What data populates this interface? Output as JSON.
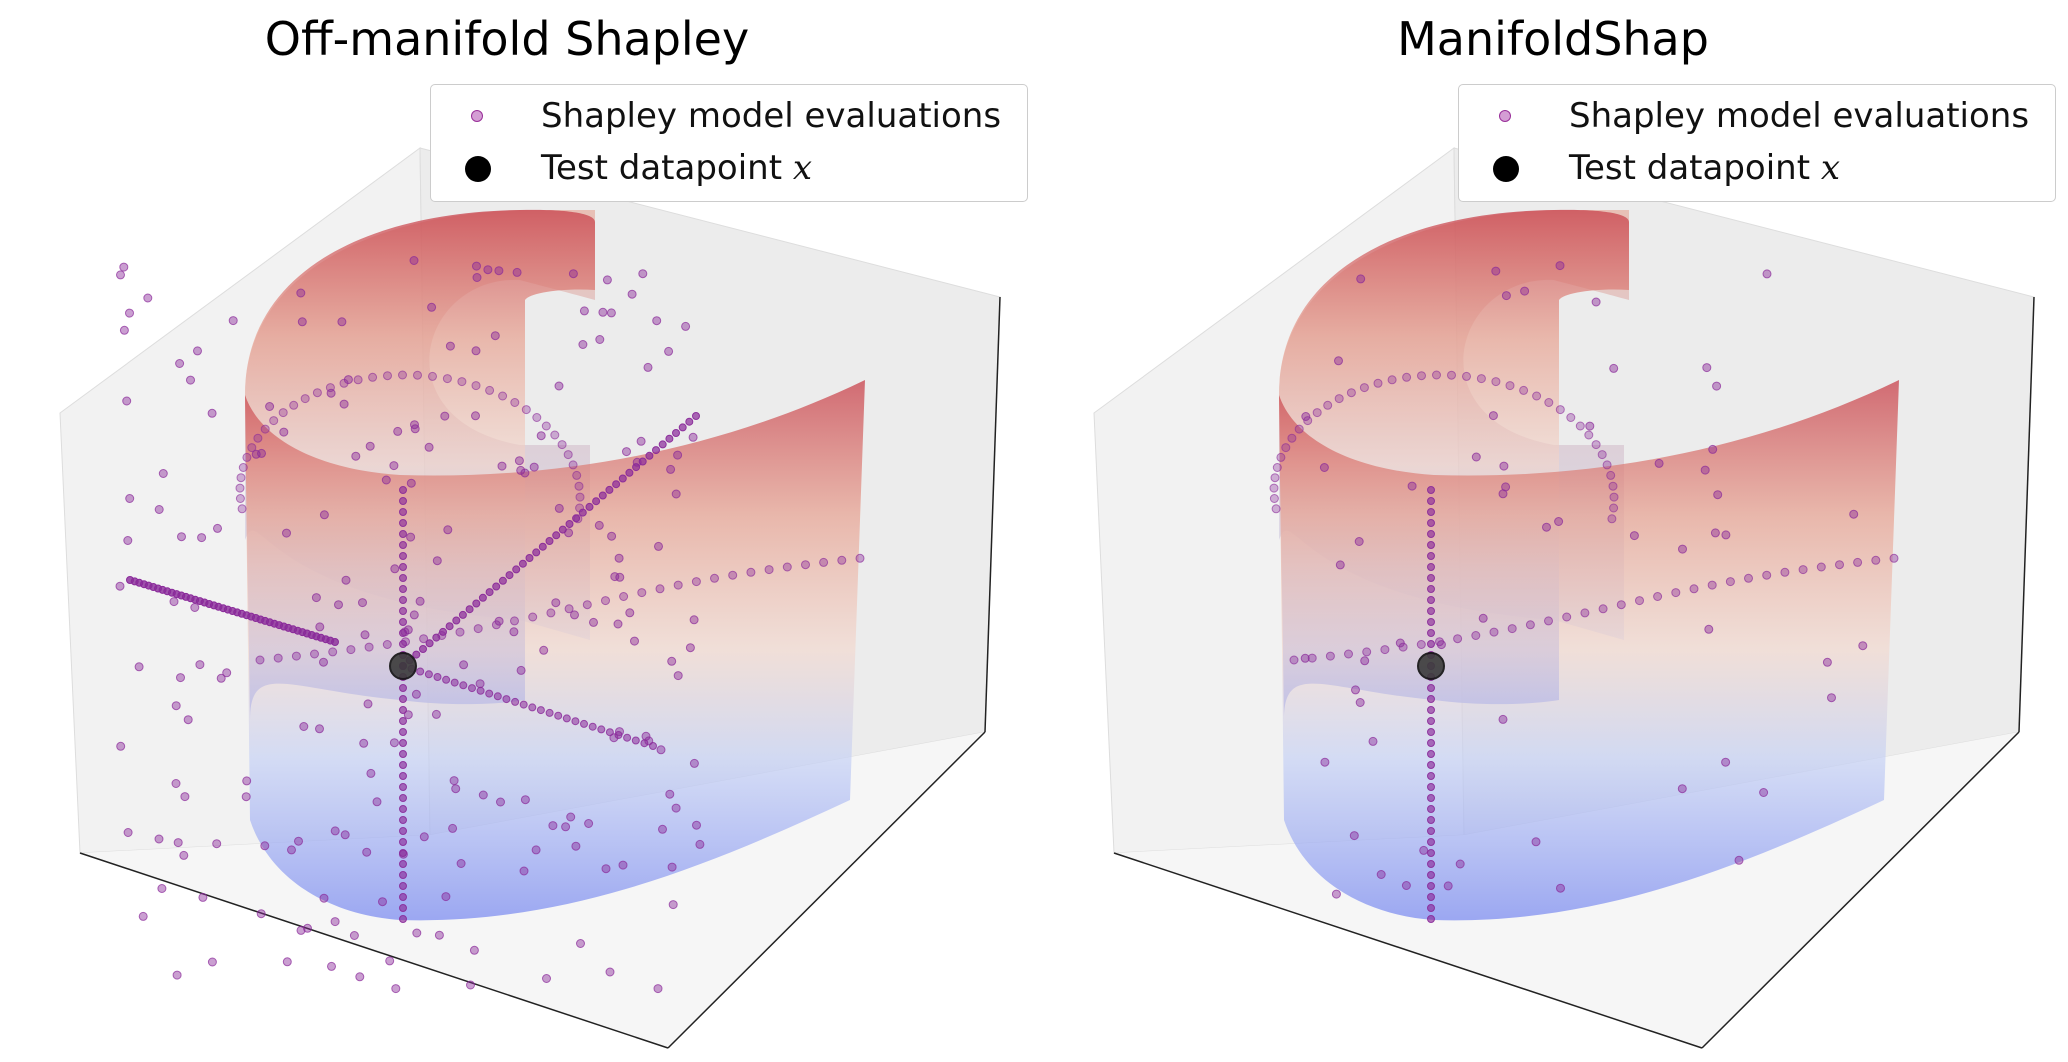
{
  "chart_data": [
    {
      "type": "scatter",
      "title": "Off-manifold Shapley",
      "legend": {
        "placement": "top-right",
        "entries": [
          {
            "label": "Shapley model evaluations",
            "color": "#9b30a8",
            "marker": "small-circle"
          },
          {
            "label_text": "Test datapoint ",
            "label_var": "x",
            "color": "#000000",
            "marker": "large-circle"
          }
        ]
      },
      "surface": {
        "shape": "S-curve",
        "colormap": "coolwarm",
        "alpha": 0.5
      },
      "grid": false,
      "axes_visible": false,
      "test_point": "x",
      "evaluations": "scattered off-manifold"
    },
    {
      "type": "scatter",
      "title": "ManifoldShap",
      "legend": {
        "placement": "top-right",
        "entries": [
          {
            "label": "Shapley model evaluations",
            "color": "#9b30a8",
            "marker": "small-circle"
          },
          {
            "label_text": "Test datapoint ",
            "label_var": "x",
            "color": "#000000",
            "marker": "large-circle"
          }
        ]
      },
      "surface": {
        "shape": "S-curve",
        "colormap": "coolwarm",
        "alpha": 0.5
      },
      "grid": false,
      "axes_visible": false,
      "test_point": "x",
      "evaluations": "on-manifold"
    }
  ],
  "colors": {
    "point": "#8a2a9a",
    "pane": "#f2f2f2",
    "surface_top": "#d46a6a",
    "surface_bottom": "#7d8ff0"
  }
}
